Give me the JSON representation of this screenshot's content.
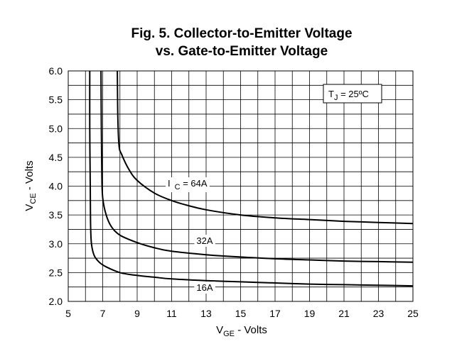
{
  "chart_data": {
    "type": "line",
    "title": [
      "Fig. 5. Collector-to-Emitter Voltage",
      "vs. Gate-to-Emitter Voltage"
    ],
    "xlabel": {
      "main": "V",
      "sub": "GE",
      "suffix": " - Volts"
    },
    "ylabel": {
      "main": "V",
      "sub": "CE",
      "suffix": " - Volts"
    },
    "xlim": [
      5,
      25
    ],
    "ylim": [
      2.0,
      6.0
    ],
    "xticks": [
      5,
      7,
      9,
      11,
      13,
      15,
      17,
      19,
      21,
      23,
      25
    ],
    "yticks": [
      "2.0",
      "2.5",
      "3.0",
      "3.5",
      "4.0",
      "4.5",
      "5.0",
      "5.5",
      "6.0"
    ],
    "grid": true,
    "condition": {
      "main": "T",
      "sub": "J",
      "rest": " = 25ºC"
    },
    "series": [
      {
        "name": "16A",
        "label": {
          "text": "16A"
        },
        "points": [
          [
            6.25,
            6.0
          ],
          [
            6.25,
            5.0
          ],
          [
            6.28,
            4.0
          ],
          [
            6.3,
            3.3
          ],
          [
            6.35,
            3.0
          ],
          [
            6.5,
            2.8
          ],
          [
            6.8,
            2.68
          ],
          [
            7.2,
            2.6
          ],
          [
            8,
            2.5
          ],
          [
            9,
            2.45
          ],
          [
            10,
            2.42
          ],
          [
            11,
            2.39
          ],
          [
            13,
            2.36
          ],
          [
            15,
            2.34
          ],
          [
            17,
            2.32
          ],
          [
            19,
            2.3
          ],
          [
            21,
            2.29
          ],
          [
            23,
            2.28
          ],
          [
            25,
            2.27
          ]
        ]
      },
      {
        "name": "32A",
        "label": {
          "text": "32A"
        },
        "points": [
          [
            6.9,
            6.0
          ],
          [
            6.92,
            5.0
          ],
          [
            6.95,
            4.2
          ],
          [
            7.0,
            3.8
          ],
          [
            7.2,
            3.5
          ],
          [
            7.5,
            3.3
          ],
          [
            8,
            3.15
          ],
          [
            9,
            3.02
          ],
          [
            10,
            2.93
          ],
          [
            11,
            2.87
          ],
          [
            13,
            2.81
          ],
          [
            15,
            2.77
          ],
          [
            17,
            2.74
          ],
          [
            19,
            2.72
          ],
          [
            21,
            2.7
          ],
          [
            23,
            2.69
          ],
          [
            25,
            2.68
          ]
        ]
      },
      {
        "name": "64A",
        "label": {
          "main": "I",
          "sub": "C",
          "rest": " = 64A"
        },
        "points": [
          [
            7.85,
            6.0
          ],
          [
            7.88,
            5.2
          ],
          [
            7.95,
            4.7
          ],
          [
            8.1,
            4.55
          ],
          [
            8.5,
            4.3
          ],
          [
            9,
            4.1
          ],
          [
            10,
            3.88
          ],
          [
            11,
            3.75
          ],
          [
            12,
            3.66
          ],
          [
            13,
            3.59
          ],
          [
            15,
            3.5
          ],
          [
            17,
            3.45
          ],
          [
            19,
            3.42
          ],
          [
            21,
            3.39
          ],
          [
            23,
            3.37
          ],
          [
            25,
            3.35
          ]
        ]
      }
    ]
  }
}
